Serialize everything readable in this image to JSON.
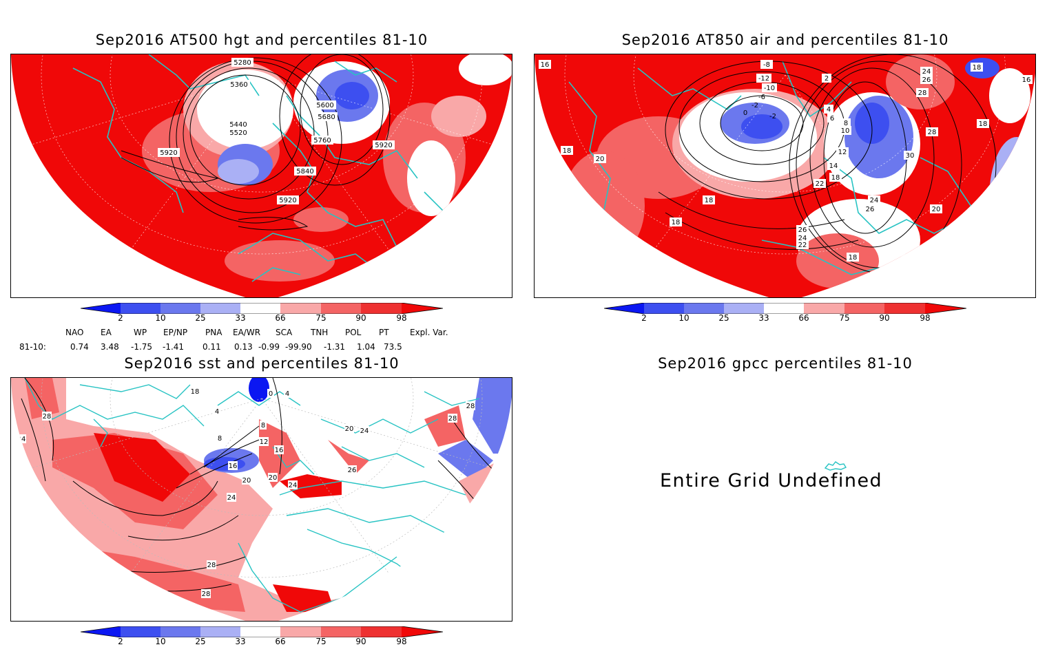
{
  "panels": {
    "p1": {
      "title": "Sep2016 AT500 hgt and percentiles 81-10",
      "contour_labels": [
        "5280",
        "5360",
        "5440",
        "5520",
        "5600",
        "5680",
        "5760",
        "5840",
        "5920",
        "5920",
        "5920"
      ]
    },
    "p2": {
      "title": "Sep2016 AT850 air and percentiles 81-10",
      "contour_labels": [
        "16",
        "18",
        "18",
        "20",
        "18",
        "18",
        "-8",
        "-12",
        "-10",
        "-6",
        "-2",
        "2",
        "0",
        "-2",
        "2",
        "4",
        "6",
        "8",
        "10",
        "12",
        "14",
        "16",
        "18",
        "22",
        "24",
        "26",
        "24",
        "26",
        "28",
        "28",
        "30",
        "18",
        "16",
        "18",
        "20",
        "24",
        "26",
        "22",
        "18",
        "20"
      ]
    },
    "p3": {
      "title": "Sep2016 sst and percentiles 81-10",
      "contour_labels": [
        "28",
        "24",
        "18",
        "4",
        "8",
        "12",
        "16",
        "20",
        "24",
        "28",
        "28",
        "8",
        "0",
        "4",
        "16",
        "20",
        "24",
        "26",
        "20",
        "24",
        "28",
        "28"
      ]
    },
    "p4": {
      "title": "Sep2016 gpcc percentiles 81-10",
      "message": "Entire Grid Undefined"
    }
  },
  "colorbar": {
    "labels": [
      "2",
      "10",
      "25",
      "33",
      "66",
      "75",
      "90",
      "98"
    ],
    "colors": [
      "#0b17f2",
      "#3d4ff0",
      "#6b78ee",
      "#aab0f5",
      "#ffffff",
      "#f9a8a8",
      "#f46464",
      "#ee3131",
      "#f00808"
    ]
  },
  "teleconnections": {
    "headers": [
      "NAO",
      "EA",
      "WP",
      "EP/NP",
      "PNA",
      "EA/WR",
      "SCA",
      "TNH",
      "POL",
      "PT",
      "Expl. Var."
    ],
    "row_label": "81-10:",
    "values": [
      "0.74",
      "3.48",
      "-1.75",
      "-1.41",
      "0.11",
      "0.13",
      "-0.99",
      "-99.90",
      "-1.31",
      "1.04",
      "73.5"
    ]
  },
  "map_colors": {
    "land_outline": "#27c3c3",
    "strong_warm": "#f00808",
    "warm": "#f46464",
    "light_warm": "#f9a8a8",
    "cool": "#6b78ee",
    "strong_cool": "#0b17f2"
  }
}
